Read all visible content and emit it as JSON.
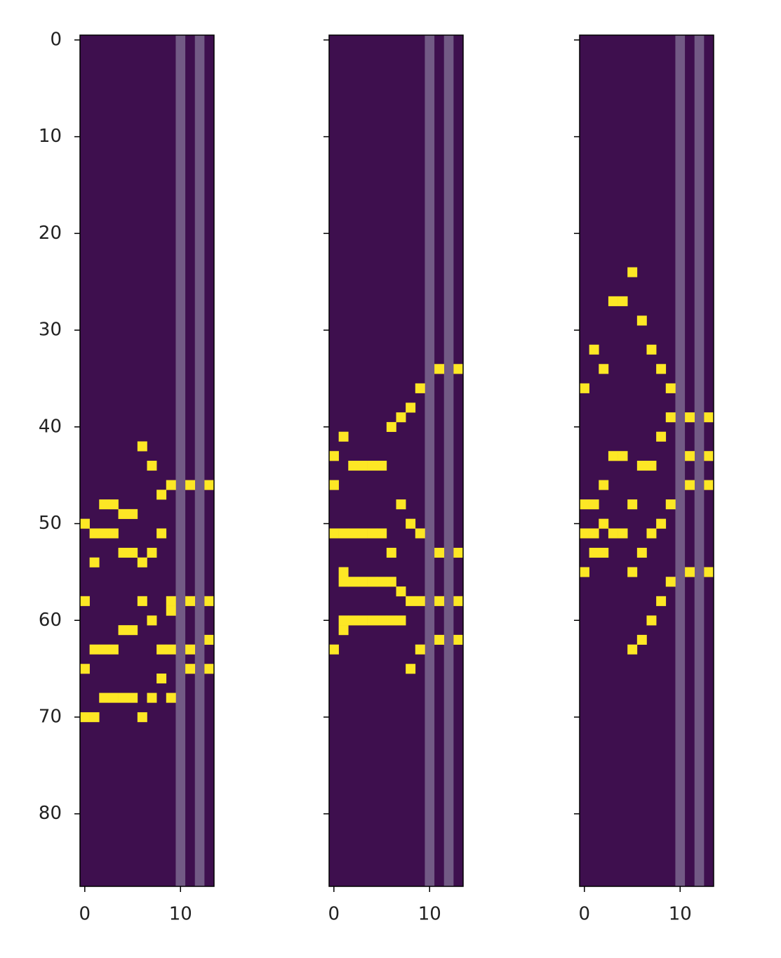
{
  "chart_data": [
    {
      "type": "heatmap",
      "background_color": "#3e0f4e",
      "on_color": "#fde725",
      "highlight_columns": [
        10,
        12
      ],
      "highlight_color": "#725a85",
      "xlim": [
        -0.5,
        13.5
      ],
      "ylim": [
        87.5,
        -0.5
      ],
      "xticks": [
        0,
        10
      ],
      "yticks": [
        0,
        10,
        20,
        30,
        40,
        50,
        60,
        70,
        80
      ],
      "show_ytick_labels": true,
      "cells": [
        [
          6,
          42
        ],
        [
          7,
          44
        ],
        [
          9,
          46
        ],
        [
          11,
          46
        ],
        [
          13,
          46
        ],
        [
          8,
          47
        ],
        [
          2,
          48
        ],
        [
          3,
          48
        ],
        [
          4,
          49
        ],
        [
          5,
          49
        ],
        [
          0,
          50
        ],
        [
          1,
          51
        ],
        [
          2,
          51
        ],
        [
          3,
          51
        ],
        [
          8,
          51
        ],
        [
          4,
          53
        ],
        [
          5,
          53
        ],
        [
          7,
          53
        ],
        [
          1,
          54
        ],
        [
          6,
          54
        ],
        [
          0,
          58
        ],
        [
          6,
          58
        ],
        [
          9,
          58
        ],
        [
          11,
          58
        ],
        [
          13,
          58
        ],
        [
          9,
          59
        ],
        [
          7,
          60
        ],
        [
          4,
          61
        ],
        [
          5,
          61
        ],
        [
          13,
          62
        ],
        [
          1,
          63
        ],
        [
          2,
          63
        ],
        [
          3,
          63
        ],
        [
          8,
          63
        ],
        [
          9,
          63
        ],
        [
          11,
          63
        ],
        [
          0,
          65
        ],
        [
          11,
          65
        ],
        [
          13,
          65
        ],
        [
          8,
          66
        ],
        [
          2,
          68
        ],
        [
          3,
          68
        ],
        [
          4,
          68
        ],
        [
          5,
          68
        ],
        [
          7,
          68
        ],
        [
          9,
          68
        ],
        [
          0,
          70
        ],
        [
          1,
          70
        ],
        [
          6,
          70
        ]
      ]
    },
    {
      "type": "heatmap",
      "background_color": "#3e0f4e",
      "on_color": "#fde725",
      "highlight_columns": [
        10,
        12
      ],
      "highlight_color": "#725a85",
      "xlim": [
        -0.5,
        13.5
      ],
      "ylim": [
        87.5,
        -0.5
      ],
      "xticks": [
        0,
        10
      ],
      "yticks": [
        0,
        10,
        20,
        30,
        40,
        50,
        60,
        70,
        80
      ],
      "show_ytick_labels": false,
      "cells": [
        [
          11,
          34
        ],
        [
          13,
          34
        ],
        [
          9,
          36
        ],
        [
          8,
          38
        ],
        [
          7,
          39
        ],
        [
          6,
          40
        ],
        [
          1,
          41
        ],
        [
          0,
          43
        ],
        [
          2,
          44
        ],
        [
          3,
          44
        ],
        [
          4,
          44
        ],
        [
          5,
          44
        ],
        [
          0,
          46
        ],
        [
          7,
          48
        ],
        [
          8,
          50
        ],
        [
          0,
          51
        ],
        [
          1,
          51
        ],
        [
          2,
          51
        ],
        [
          3,
          51
        ],
        [
          4,
          51
        ],
        [
          5,
          51
        ],
        [
          9,
          51
        ],
        [
          6,
          53
        ],
        [
          11,
          53
        ],
        [
          13,
          53
        ],
        [
          1,
          55
        ],
        [
          1,
          56
        ],
        [
          2,
          56
        ],
        [
          3,
          56
        ],
        [
          4,
          56
        ],
        [
          5,
          56
        ],
        [
          6,
          56
        ],
        [
          7,
          57
        ],
        [
          8,
          58
        ],
        [
          9,
          58
        ],
        [
          11,
          58
        ],
        [
          13,
          58
        ],
        [
          1,
          60
        ],
        [
          2,
          60
        ],
        [
          3,
          60
        ],
        [
          4,
          60
        ],
        [
          5,
          60
        ],
        [
          6,
          60
        ],
        [
          7,
          60
        ],
        [
          1,
          61
        ],
        [
          11,
          62
        ],
        [
          13,
          62
        ],
        [
          0,
          63
        ],
        [
          9,
          63
        ],
        [
          8,
          65
        ]
      ]
    },
    {
      "type": "heatmap",
      "background_color": "#3e0f4e",
      "on_color": "#fde725",
      "highlight_columns": [
        10,
        12
      ],
      "highlight_color": "#725a85",
      "xlim": [
        -0.5,
        13.5
      ],
      "ylim": [
        87.5,
        -0.5
      ],
      "xticks": [
        0,
        10
      ],
      "yticks": [
        0,
        10,
        20,
        30,
        40,
        50,
        60,
        70,
        80
      ],
      "show_ytick_labels": false,
      "cells": [
        [
          5,
          24
        ],
        [
          3,
          27
        ],
        [
          4,
          27
        ],
        [
          6,
          29
        ],
        [
          1,
          32
        ],
        [
          7,
          32
        ],
        [
          2,
          34
        ],
        [
          8,
          34
        ],
        [
          0,
          36
        ],
        [
          9,
          36
        ],
        [
          9,
          39
        ],
        [
          11,
          39
        ],
        [
          13,
          39
        ],
        [
          8,
          41
        ],
        [
          3,
          43
        ],
        [
          4,
          43
        ],
        [
          11,
          43
        ],
        [
          13,
          43
        ],
        [
          6,
          44
        ],
        [
          7,
          44
        ],
        [
          2,
          46
        ],
        [
          11,
          46
        ],
        [
          13,
          46
        ],
        [
          0,
          48
        ],
        [
          1,
          48
        ],
        [
          5,
          48
        ],
        [
          9,
          48
        ],
        [
          2,
          50
        ],
        [
          8,
          50
        ],
        [
          0,
          51
        ],
        [
          1,
          51
        ],
        [
          3,
          51
        ],
        [
          4,
          51
        ],
        [
          7,
          51
        ],
        [
          1,
          53
        ],
        [
          2,
          53
        ],
        [
          6,
          53
        ],
        [
          0,
          55
        ],
        [
          5,
          55
        ],
        [
          11,
          55
        ],
        [
          13,
          55
        ],
        [
          9,
          56
        ],
        [
          8,
          58
        ],
        [
          7,
          60
        ],
        [
          6,
          62
        ],
        [
          5,
          63
        ]
      ]
    }
  ]
}
